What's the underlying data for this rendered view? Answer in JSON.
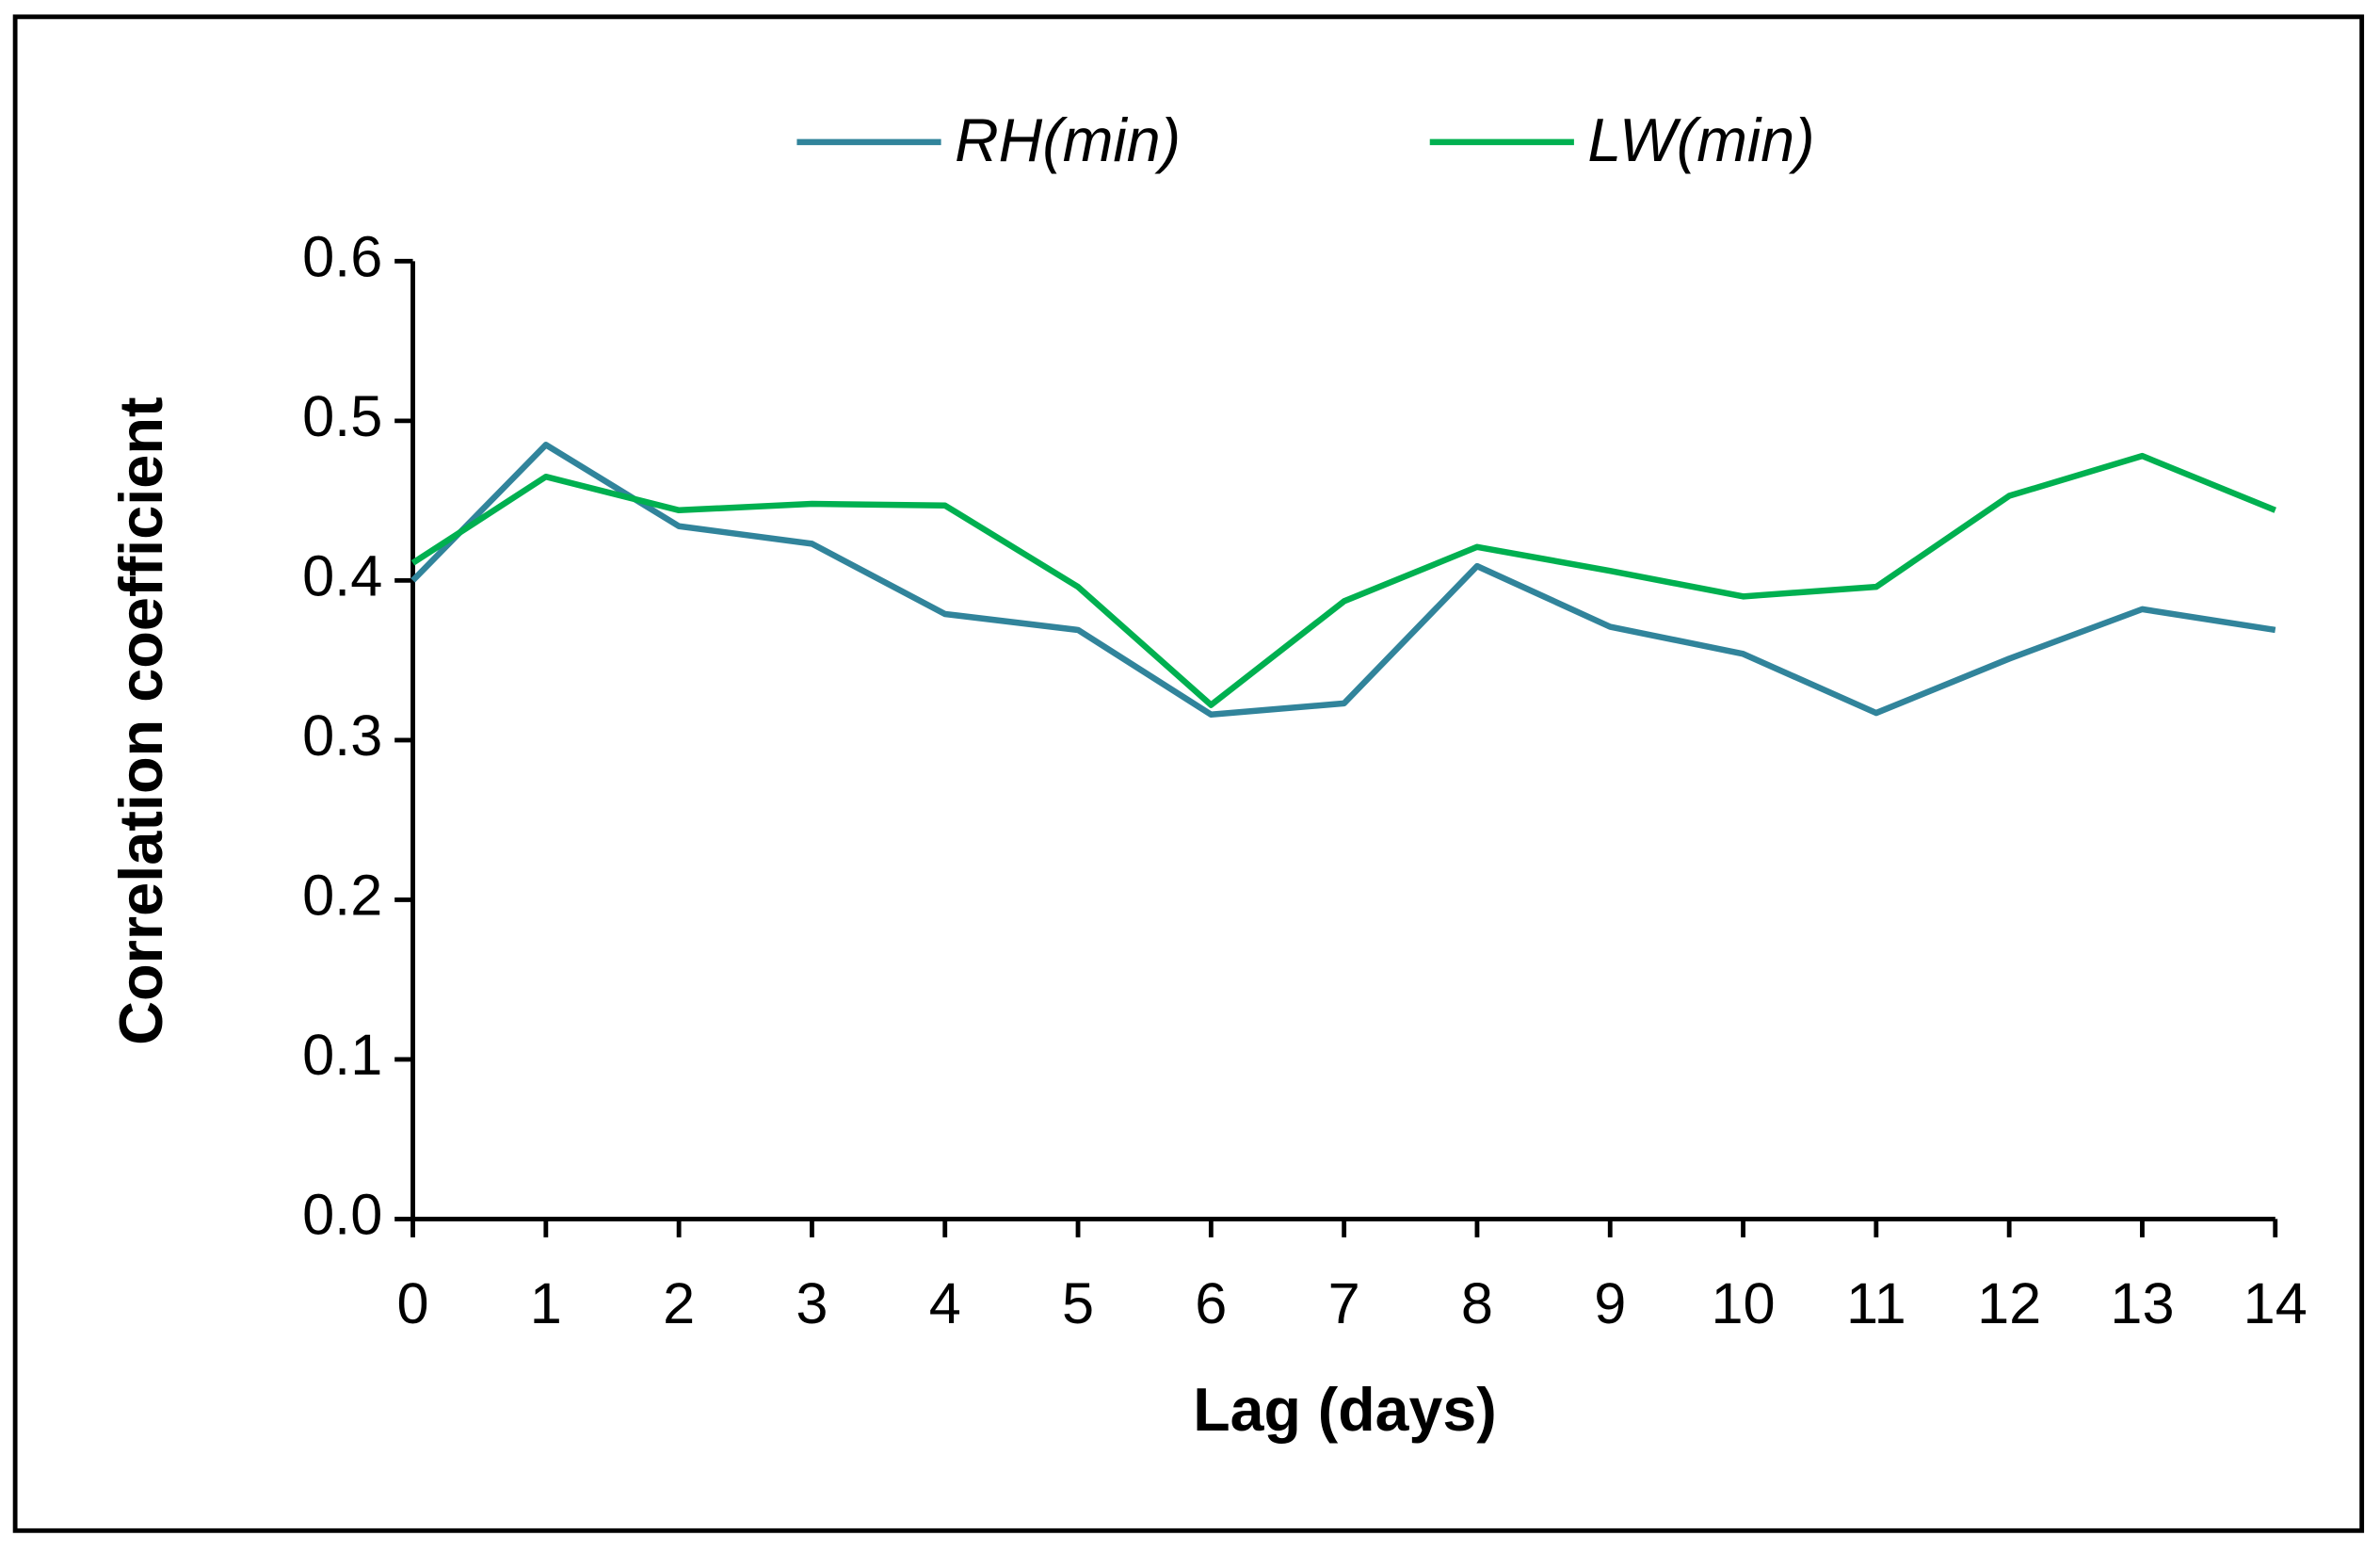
{
  "chart_data": {
    "type": "line",
    "x_label": "Lag (days)",
    "y_label": "Correlation coefficient",
    "x": [
      0,
      1,
      2,
      3,
      4,
      5,
      6,
      7,
      8,
      9,
      10,
      11,
      12,
      13,
      14
    ],
    "series": [
      {
        "name": "RH(min)",
        "color": "#31849b",
        "values": [
          0.4,
          0.485,
          0.434,
          0.423,
          0.379,
          0.369,
          0.316,
          0.323,
          0.409,
          0.371,
          0.354,
          0.317,
          0.351,
          0.382,
          0.369
        ]
      },
      {
        "name": "LW(min)",
        "color": "#00b050",
        "values": [
          0.411,
          0.465,
          0.444,
          0.448,
          0.447,
          0.396,
          0.322,
          0.387,
          0.421,
          0.406,
          0.39,
          0.396,
          0.453,
          0.478,
          0.444
        ]
      }
    ],
    "xlim": [
      0,
      14
    ],
    "xticks": [
      0,
      1,
      2,
      3,
      4,
      5,
      6,
      7,
      8,
      9,
      10,
      11,
      12,
      13,
      14
    ],
    "ylim": [
      0,
      0.6
    ],
    "yticks": [
      {
        "value": 0,
        "label": "0.0"
      },
      0.1,
      0.2,
      0.3,
      0.4,
      0.5,
      0.6
    ],
    "grid": false,
    "legend": "top"
  }
}
